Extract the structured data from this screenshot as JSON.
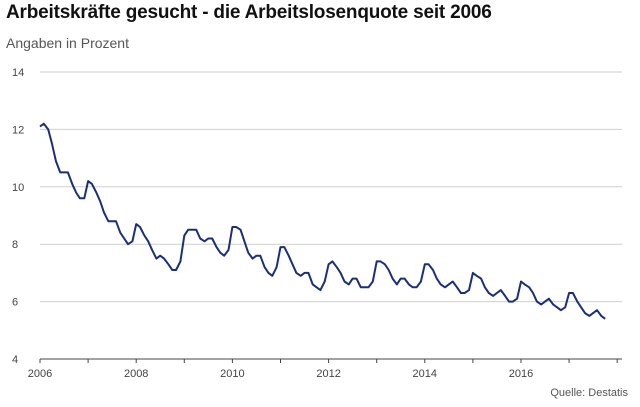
{
  "header": {
    "title": "Arbeitskräfte gesucht - die Arbeitslosenquote seit 2006",
    "subtitle": "Angaben in Prozent"
  },
  "footer": {
    "source": "Quelle: Destatis"
  },
  "colors": {
    "line": "#1a2f7a",
    "grid": "#cfcfcf",
    "axis": "#444444"
  },
  "chart_data": {
    "type": "line",
    "title": "Arbeitskräfte gesucht - die Arbeitslosenquote seit 2006",
    "subtitle": "Angaben in Prozent",
    "xlabel": "",
    "ylabel": "",
    "xlim": [
      2006,
      2018.1
    ],
    "ylim": [
      4,
      14
    ],
    "y_ticks": [
      4,
      6,
      8,
      10,
      12,
      14
    ],
    "x_ticks": [
      2006,
      2008,
      2010,
      2012,
      2014,
      2016
    ],
    "grid": "horizontal",
    "legend": "none",
    "series": [
      {
        "values": [
          [
            2006.0,
            12.1
          ],
          [
            2006.08,
            12.2
          ],
          [
            2006.17,
            12.0
          ],
          [
            2006.25,
            11.5
          ],
          [
            2006.33,
            10.9
          ],
          [
            2006.42,
            10.5
          ],
          [
            2006.5,
            10.5
          ],
          [
            2006.58,
            10.5
          ],
          [
            2006.67,
            10.1
          ],
          [
            2006.75,
            9.8
          ],
          [
            2006.83,
            9.6
          ],
          [
            2006.92,
            9.6
          ],
          [
            2007.0,
            10.2
          ],
          [
            2007.08,
            10.1
          ],
          [
            2007.17,
            9.8
          ],
          [
            2007.25,
            9.5
          ],
          [
            2007.33,
            9.1
          ],
          [
            2007.42,
            8.8
          ],
          [
            2007.5,
            8.8
          ],
          [
            2007.58,
            8.8
          ],
          [
            2007.67,
            8.4
          ],
          [
            2007.75,
            8.2
          ],
          [
            2007.83,
            8.0
          ],
          [
            2007.92,
            8.1
          ],
          [
            2008.0,
            8.7
          ],
          [
            2008.08,
            8.6
          ],
          [
            2008.17,
            8.3
          ],
          [
            2008.25,
            8.1
          ],
          [
            2008.33,
            7.8
          ],
          [
            2008.42,
            7.5
          ],
          [
            2008.5,
            7.6
          ],
          [
            2008.58,
            7.5
          ],
          [
            2008.67,
            7.3
          ],
          [
            2008.75,
            7.1
          ],
          [
            2008.83,
            7.1
          ],
          [
            2008.92,
            7.4
          ],
          [
            2009.0,
            8.3
          ],
          [
            2009.08,
            8.5
          ],
          [
            2009.17,
            8.5
          ],
          [
            2009.25,
            8.5
          ],
          [
            2009.33,
            8.2
          ],
          [
            2009.42,
            8.1
          ],
          [
            2009.5,
            8.2
          ],
          [
            2009.58,
            8.2
          ],
          [
            2009.67,
            7.9
          ],
          [
            2009.75,
            7.7
          ],
          [
            2009.83,
            7.6
          ],
          [
            2009.92,
            7.8
          ],
          [
            2010.0,
            8.6
          ],
          [
            2010.08,
            8.6
          ],
          [
            2010.17,
            8.5
          ],
          [
            2010.25,
            8.1
          ],
          [
            2010.33,
            7.7
          ],
          [
            2010.42,
            7.5
          ],
          [
            2010.5,
            7.6
          ],
          [
            2010.58,
            7.6
          ],
          [
            2010.67,
            7.2
          ],
          [
            2010.75,
            7.0
          ],
          [
            2010.83,
            6.9
          ],
          [
            2010.92,
            7.2
          ],
          [
            2011.0,
            7.9
          ],
          [
            2011.08,
            7.9
          ],
          [
            2011.17,
            7.6
          ],
          [
            2011.25,
            7.3
          ],
          [
            2011.33,
            7.0
          ],
          [
            2011.42,
            6.9
          ],
          [
            2011.5,
            7.0
          ],
          [
            2011.58,
            7.0
          ],
          [
            2011.67,
            6.6
          ],
          [
            2011.75,
            6.5
          ],
          [
            2011.83,
            6.4
          ],
          [
            2011.92,
            6.7
          ],
          [
            2012.0,
            7.3
          ],
          [
            2012.08,
            7.4
          ],
          [
            2012.17,
            7.2
          ],
          [
            2012.25,
            7.0
          ],
          [
            2012.33,
            6.7
          ],
          [
            2012.42,
            6.6
          ],
          [
            2012.5,
            6.8
          ],
          [
            2012.58,
            6.8
          ],
          [
            2012.67,
            6.5
          ],
          [
            2012.75,
            6.5
          ],
          [
            2012.83,
            6.5
          ],
          [
            2012.92,
            6.7
          ],
          [
            2013.0,
            7.4
          ],
          [
            2013.08,
            7.4
          ],
          [
            2013.17,
            7.3
          ],
          [
            2013.25,
            7.1
          ],
          [
            2013.33,
            6.8
          ],
          [
            2013.42,
            6.6
          ],
          [
            2013.5,
            6.8
          ],
          [
            2013.58,
            6.8
          ],
          [
            2013.67,
            6.6
          ],
          [
            2013.75,
            6.5
          ],
          [
            2013.83,
            6.5
          ],
          [
            2013.92,
            6.7
          ],
          [
            2014.0,
            7.3
          ],
          [
            2014.08,
            7.3
          ],
          [
            2014.17,
            7.1
          ],
          [
            2014.25,
            6.8
          ],
          [
            2014.33,
            6.6
          ],
          [
            2014.42,
            6.5
          ],
          [
            2014.5,
            6.6
          ],
          [
            2014.58,
            6.7
          ],
          [
            2014.67,
            6.5
          ],
          [
            2014.75,
            6.3
          ],
          [
            2014.83,
            6.3
          ],
          [
            2014.92,
            6.4
          ],
          [
            2015.0,
            7.0
          ],
          [
            2015.08,
            6.9
          ],
          [
            2015.17,
            6.8
          ],
          [
            2015.25,
            6.5
          ],
          [
            2015.33,
            6.3
          ],
          [
            2015.42,
            6.2
          ],
          [
            2015.5,
            6.3
          ],
          [
            2015.58,
            6.4
          ],
          [
            2015.67,
            6.2
          ],
          [
            2015.75,
            6.0
          ],
          [
            2015.83,
            6.0
          ],
          [
            2015.92,
            6.1
          ],
          [
            2016.0,
            6.7
          ],
          [
            2016.08,
            6.6
          ],
          [
            2016.17,
            6.5
          ],
          [
            2016.25,
            6.3
          ],
          [
            2016.33,
            6.0
          ],
          [
            2016.42,
            5.9
          ],
          [
            2016.5,
            6.0
          ],
          [
            2016.58,
            6.1
          ],
          [
            2016.67,
            5.9
          ],
          [
            2016.75,
            5.8
          ],
          [
            2016.83,
            5.7
          ],
          [
            2016.92,
            5.8
          ],
          [
            2017.0,
            6.3
          ],
          [
            2017.08,
            6.3
          ],
          [
            2017.17,
            6.0
          ],
          [
            2017.25,
            5.8
          ],
          [
            2017.33,
            5.6
          ],
          [
            2017.42,
            5.5
          ],
          [
            2017.5,
            5.6
          ],
          [
            2017.58,
            5.7
          ],
          [
            2017.67,
            5.5
          ],
          [
            2017.75,
            5.4
          ]
        ]
      }
    ]
  }
}
